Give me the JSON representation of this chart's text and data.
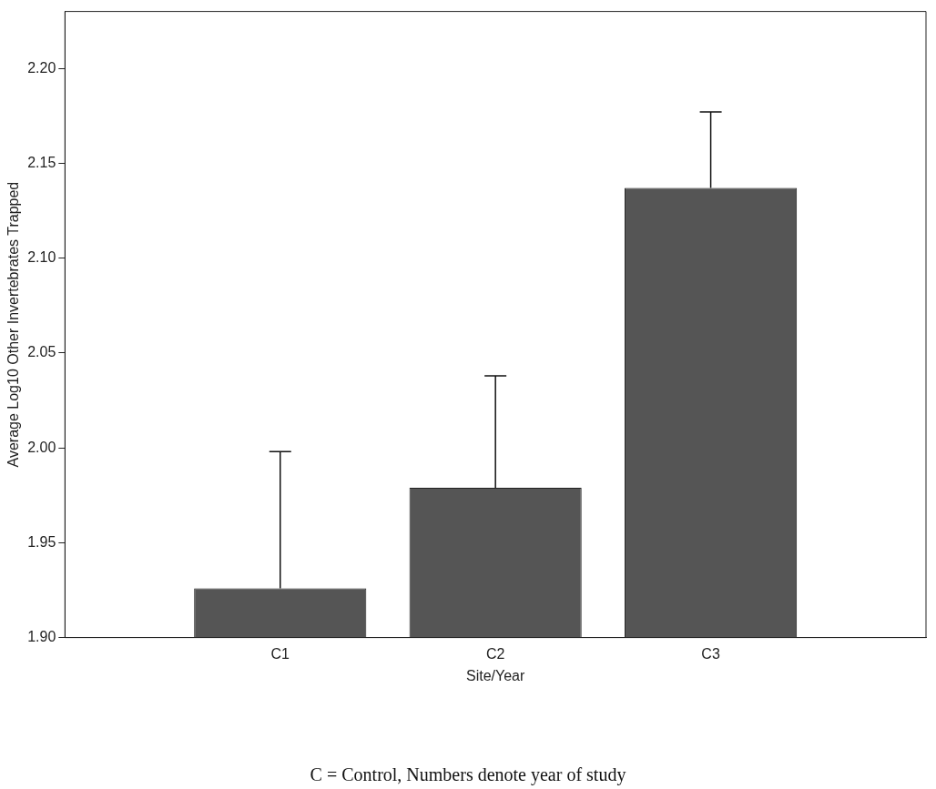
{
  "chart_data": {
    "type": "bar",
    "xlabel": "Site/Year",
    "ylabel": "Average Log10 Other Invertebrates Trapped",
    "categories": [
      "C1",
      "C2",
      "C3"
    ],
    "values": [
      1.926,
      1.979,
      2.137
    ],
    "errors": [
      [
        1.926,
        1.998
      ],
      [
        1.979,
        2.038
      ],
      [
        2.137,
        2.177
      ]
    ],
    "color": "#555555",
    "ylim": [
      1.9,
      2.23
    ],
    "yticks": [
      {
        "value": 1.9,
        "label": "1.90"
      },
      {
        "value": 1.95,
        "label": "1.95"
      },
      {
        "value": 2.0,
        "label": "2.00"
      },
      {
        "value": 2.05,
        "label": "2.05"
      },
      {
        "value": 2.1,
        "label": "2.10"
      },
      {
        "value": 2.15,
        "label": "2.15"
      },
      {
        "value": 2.2,
        "label": "2.20"
      }
    ],
    "grid": false,
    "legend": false,
    "annotations": [
      "C = Control, Numbers denote year of study"
    ]
  }
}
